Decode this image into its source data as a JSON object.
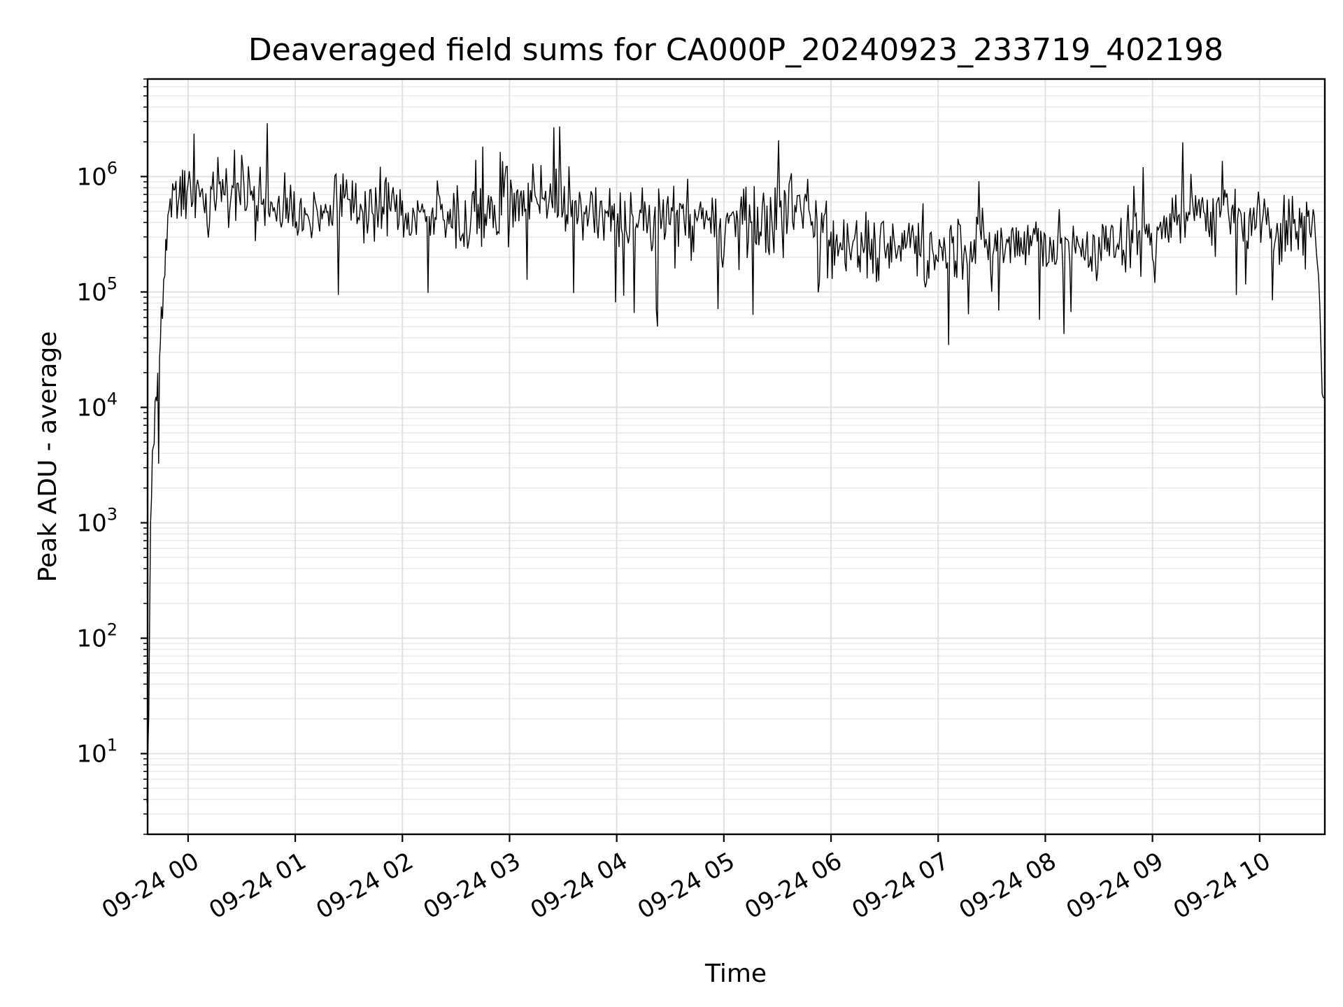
{
  "chart_data": {
    "type": "line",
    "title": "Deaveraged field sums for CA000P_20240923_233719_402198",
    "xlabel": "Time",
    "ylabel": "Peak ADU - average",
    "yscale": "log",
    "ylim": [
      2,
      7000000
    ],
    "xlim": [
      "2024-09-23 23:37:19",
      "2024-09-24 10:36:30"
    ],
    "grid": true,
    "line_color": "#000000",
    "x_tick_labels": [
      "09-24 00",
      "09-24 01",
      "09-24 02",
      "09-24 03",
      "09-24 04",
      "09-24 05",
      "09-24 06",
      "09-24 07",
      "09-24 08",
      "09-24 09",
      "09-24 10"
    ],
    "x_tick_times": [
      "2024-09-24 00:00",
      "2024-09-24 01:00",
      "2024-09-24 02:00",
      "2024-09-24 03:00",
      "2024-09-24 04:00",
      "2024-09-24 05:00",
      "2024-09-24 06:00",
      "2024-09-24 07:00",
      "2024-09-24 08:00",
      "2024-09-24 09:00",
      "2024-09-24 10:00"
    ],
    "y_tick_labels": [
      {
        "base": "10",
        "exp": "1",
        "value": 10
      },
      {
        "base": "10",
        "exp": "2",
        "value": 100
      },
      {
        "base": "10",
        "exp": "3",
        "value": 1000
      },
      {
        "base": "10",
        "exp": "4",
        "value": 10000
      },
      {
        "base": "10",
        "exp": "5",
        "value": 100000
      },
      {
        "base": "10",
        "exp": "6",
        "value": 1000000
      }
    ],
    "series": [
      {
        "x": [
          "2024-09-23 23:37",
          "2024-09-23 23:38",
          "2024-09-23 23:39",
          "2024-09-23 23:40",
          "2024-09-23 23:41",
          "2024-09-23 23:42",
          "2024-09-23 23:43",
          "2024-09-23 23:44",
          "2024-09-23 23:45",
          "2024-09-23 23:47",
          "2024-09-23 23:48",
          "2024-09-23 23:50",
          "2024-09-23 23:52",
          "2024-09-23 23:55",
          "2024-09-24 00:00",
          "2024-09-24 00:10",
          "2024-09-24 00:20",
          "2024-09-24 00:30",
          "2024-09-24 00:35",
          "2024-09-24 00:45",
          "2024-09-24 01:00",
          "2024-09-24 01:15",
          "2024-09-24 01:30",
          "2024-09-24 01:45",
          "2024-09-24 02:00",
          "2024-09-24 02:15",
          "2024-09-24 02:30",
          "2024-09-24 02:45",
          "2024-09-24 03:00",
          "2024-09-24 03:15",
          "2024-09-24 03:30",
          "2024-09-24 03:45",
          "2024-09-24 04:00",
          "2024-09-24 04:15",
          "2024-09-24 04:30",
          "2024-09-24 04:45",
          "2024-09-24 05:00",
          "2024-09-24 05:15",
          "2024-09-24 05:30",
          "2024-09-24 05:45",
          "2024-09-24 06:00",
          "2024-09-24 06:15",
          "2024-09-24 06:30",
          "2024-09-24 06:45",
          "2024-09-24 07:00",
          "2024-09-24 07:15",
          "2024-09-24 07:30",
          "2024-09-24 07:45",
          "2024-09-24 08:00",
          "2024-09-24 08:15",
          "2024-09-24 08:30",
          "2024-09-24 08:45",
          "2024-09-24 09:00",
          "2024-09-24 09:15",
          "2024-09-24 09:30",
          "2024-09-24 09:45",
          "2024-09-24 10:00",
          "2024-09-24 10:15",
          "2024-09-24 10:25",
          "2024-09-24 10:30",
          "2024-09-24 10:33",
          "2024-09-24 10:35",
          "2024-09-24 10:36"
        ],
        "values": [
          4,
          30,
          1000,
          3000,
          6000,
          12000,
          10000,
          30000,
          60000,
          150000,
          600000,
          550000,
          650000,
          700000,
          800000,
          700000,
          650000,
          800000,
          750000,
          550000,
          500000,
          450000,
          600000,
          550000,
          500000,
          450000,
          400000,
          380000,
          500000,
          800000,
          600000,
          450000,
          450000,
          400000,
          420000,
          400000,
          380000,
          400000,
          450000,
          600000,
          350000,
          250000,
          250000,
          280000,
          250000,
          260000,
          250000,
          280000,
          250000,
          250000,
          230000,
          280000,
          350000,
          450000,
          500000,
          400000,
          400000,
          350000,
          380000,
          500000,
          150000,
          15000,
          12000
        ]
      }
    ]
  }
}
